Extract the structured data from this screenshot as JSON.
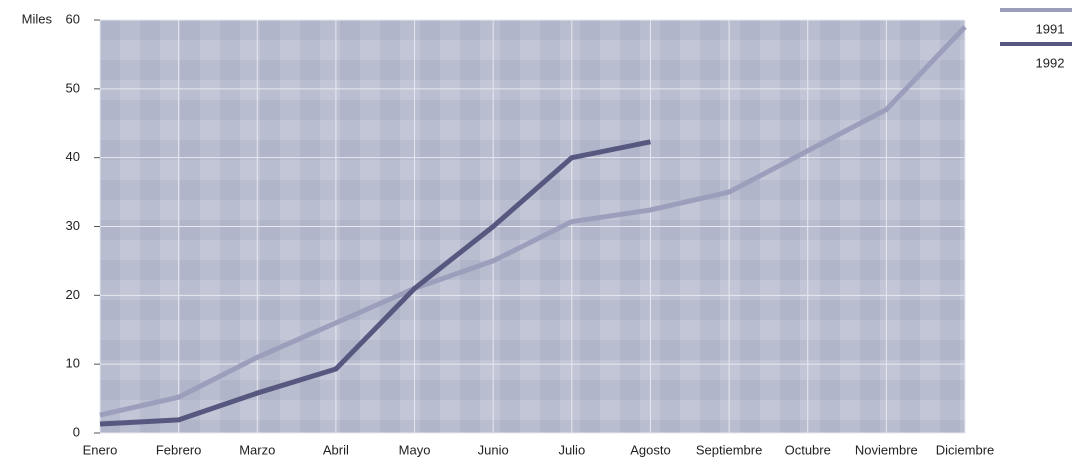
{
  "chart_data": {
    "type": "line",
    "y_label": "Miles",
    "categories": [
      "Enero",
      "Febrero",
      "Marzo",
      "Abril",
      "Mayo",
      "Junio",
      "Julio",
      "Agosto",
      "Septiembre",
      "Octubre",
      "Noviembre",
      "Diciembre"
    ],
    "series": [
      {
        "name": "1991",
        "color": "#9c9fbc",
        "values": [
          2.6,
          5.2,
          11,
          16,
          21,
          25,
          30.7,
          32.4,
          35,
          41,
          47,
          59
        ]
      },
      {
        "name": "1992",
        "color": "#57587f",
        "values": [
          1.3,
          1.9,
          5.8,
          9.3,
          21,
          30,
          40,
          42.3,
          null,
          null,
          null,
          null
        ]
      }
    ],
    "ylim": [
      0,
      60
    ],
    "yticks": [
      0,
      10,
      20,
      30,
      40,
      50,
      60
    ],
    "grid": true,
    "legend": "top-right"
  }
}
